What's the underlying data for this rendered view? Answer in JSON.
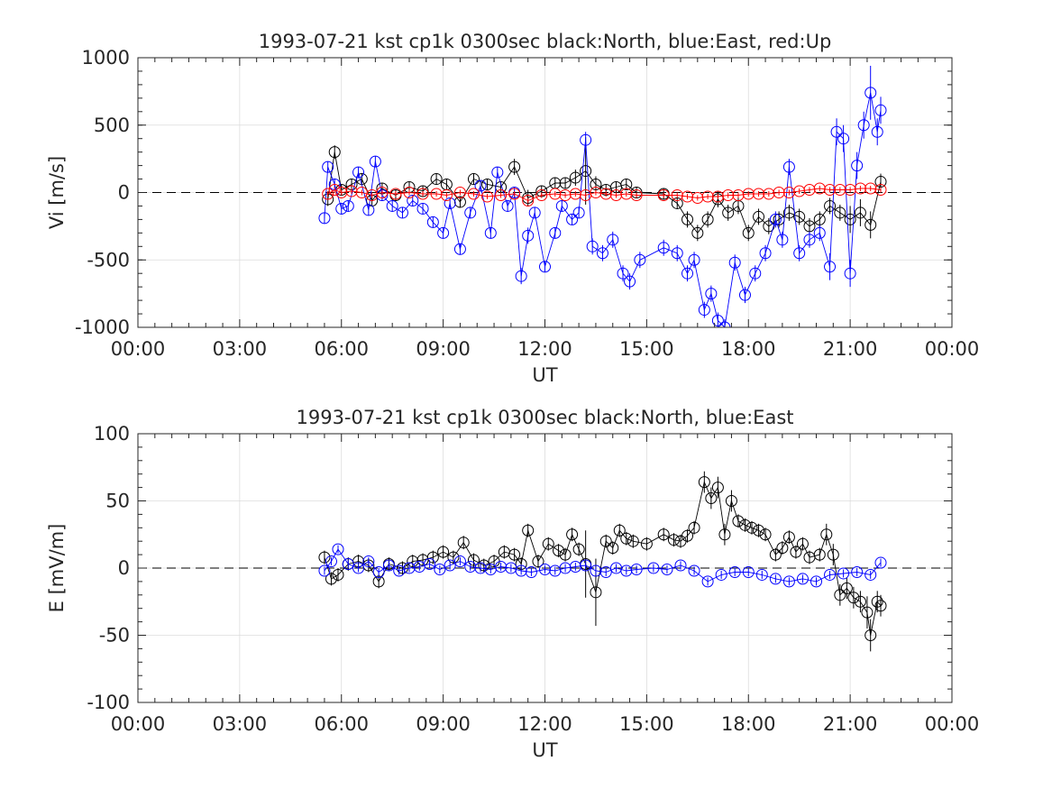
{
  "chart_data": [
    {
      "type": "scatter",
      "title": "1993-07-21 kst cp1k 0300sec black:North, blue:East, red:Up",
      "xlabel": "UT",
      "ylabel": "Vi [m/s]",
      "xlim": [
        0,
        24
      ],
      "ylim": [
        -1000,
        1000
      ],
      "xticks": [
        0,
        3,
        6,
        9,
        12,
        15,
        18,
        21,
        24
      ],
      "xticklabels": [
        "00:00",
        "03:00",
        "06:00",
        "09:00",
        "12:00",
        "15:00",
        "18:00",
        "21:00",
        "00:00"
      ],
      "yticks": [
        -1000,
        -500,
        0,
        500,
        1000
      ],
      "yticklabels": [
        "-1000",
        "-500",
        "0",
        "500",
        "1000"
      ],
      "grid": true,
      "zero_line": "dashed",
      "series": [
        {
          "name": "North",
          "color": "#000000",
          "x": [
            5.6,
            5.8,
            6.0,
            6.3,
            6.6,
            6.9,
            7.2,
            7.6,
            8.0,
            8.4,
            8.8,
            9.1,
            9.5,
            9.9,
            10.3,
            10.7,
            11.1,
            11.5,
            11.9,
            12.3,
            12.6,
            12.9,
            13.2,
            13.5,
            13.8,
            14.1,
            14.4,
            14.7,
            15.5,
            15.9,
            16.2,
            16.5,
            16.8,
            17.1,
            17.4,
            17.7,
            18.0,
            18.3,
            18.6,
            18.9,
            19.2,
            19.5,
            19.8,
            20.1,
            20.4,
            20.7,
            21.0,
            21.3,
            21.6,
            21.9
          ],
          "y": [
            -50,
            300,
            20,
            60,
            100,
            -60,
            30,
            -20,
            40,
            10,
            100,
            60,
            -70,
            100,
            60,
            40,
            190,
            -40,
            10,
            70,
            70,
            110,
            160,
            60,
            20,
            40,
            60,
            0,
            -10,
            -80,
            -200,
            -300,
            -200,
            -50,
            -150,
            -100,
            -300,
            -180,
            -250,
            -200,
            -150,
            -180,
            -250,
            -200,
            -100,
            -150,
            -200,
            -150,
            -240,
            80
          ],
          "err": [
            50,
            50,
            40,
            40,
            40,
            40,
            40,
            40,
            40,
            40,
            40,
            40,
            40,
            40,
            40,
            40,
            60,
            60,
            40,
            40,
            40,
            60,
            250,
            60,
            40,
            40,
            40,
            40,
            40,
            40,
            60,
            60,
            60,
            60,
            60,
            60,
            60,
            60,
            60,
            60,
            60,
            60,
            60,
            60,
            60,
            60,
            100,
            100,
            100,
            60
          ]
        },
        {
          "name": "East",
          "color": "#0000ff",
          "x": [
            5.5,
            5.6,
            5.8,
            6.0,
            6.2,
            6.5,
            6.8,
            7.0,
            7.2,
            7.5,
            7.8,
            8.1,
            8.4,
            8.7,
            9.0,
            9.2,
            9.5,
            9.8,
            10.1,
            10.4,
            10.6,
            10.9,
            11.1,
            11.3,
            11.5,
            11.7,
            12.0,
            12.3,
            12.5,
            12.8,
            13.0,
            13.2,
            13.4,
            13.7,
            14.0,
            14.3,
            14.5,
            14.8,
            15.5,
            15.9,
            16.2,
            16.4,
            16.7,
            16.9,
            17.1,
            17.3,
            17.6,
            17.9,
            18.2,
            18.5,
            18.8,
            19.0,
            19.2,
            19.5,
            19.8,
            20.1,
            20.4,
            20.6,
            20.8,
            21.0,
            21.2,
            21.4,
            21.6,
            21.8,
            21.9
          ],
          "y": [
            -190,
            190,
            60,
            -120,
            -100,
            150,
            -130,
            230,
            -20,
            -100,
            -150,
            -60,
            -120,
            -220,
            -300,
            -80,
            -420,
            -150,
            50,
            -300,
            150,
            -100,
            0,
            -620,
            -320,
            -150,
            -550,
            -300,
            -100,
            -200,
            -150,
            390,
            -400,
            -450,
            -350,
            -600,
            -660,
            -500,
            -410,
            -450,
            -600,
            -500,
            -870,
            -750,
            -950,
            -1000,
            -520,
            -760,
            -600,
            -450,
            -200,
            -350,
            190,
            -450,
            -350,
            -300,
            -550,
            450,
            400,
            -600,
            200,
            500,
            740,
            450,
            610
          ],
          "err": [
            40,
            40,
            40,
            40,
            40,
            40,
            40,
            40,
            40,
            40,
            40,
            40,
            40,
            40,
            40,
            40,
            40,
            40,
            40,
            40,
            40,
            40,
            40,
            60,
            60,
            40,
            40,
            40,
            40,
            40,
            40,
            60,
            60,
            60,
            60,
            60,
            60,
            60,
            60,
            60,
            60,
            60,
            60,
            60,
            60,
            60,
            60,
            60,
            60,
            60,
            60,
            60,
            60,
            60,
            60,
            60,
            100,
            100,
            100,
            100,
            100,
            100,
            200,
            100,
            100
          ]
        },
        {
          "name": "Up",
          "color": "#ff0000",
          "x": [
            5.6,
            5.8,
            6.0,
            6.3,
            6.6,
            6.9,
            7.2,
            7.6,
            8.0,
            8.4,
            8.8,
            9.1,
            9.5,
            9.9,
            10.3,
            10.7,
            11.1,
            11.5,
            11.9,
            12.3,
            12.6,
            12.9,
            13.2,
            13.5,
            13.8,
            14.1,
            14.4,
            14.7,
            15.5,
            15.9,
            16.2,
            16.5,
            16.8,
            17.1,
            17.4,
            17.7,
            18.0,
            18.3,
            18.6,
            18.9,
            19.2,
            19.5,
            19.8,
            20.1,
            20.4,
            20.7,
            21.0,
            21.3,
            21.6,
            21.9
          ],
          "y": [
            -10,
            20,
            0,
            10,
            0,
            -20,
            0,
            -10,
            0,
            -10,
            -10,
            -20,
            0,
            -10,
            -30,
            -20,
            -10,
            -60,
            -20,
            -10,
            -20,
            -10,
            -20,
            0,
            -10,
            -20,
            -10,
            -20,
            -20,
            -20,
            -30,
            -40,
            -30,
            -30,
            -20,
            -20,
            -10,
            -10,
            -10,
            0,
            0,
            10,
            20,
            30,
            20,
            20,
            20,
            30,
            30,
            20
          ],
          "err": [
            20,
            20,
            20,
            20,
            20,
            20,
            20,
            20,
            20,
            20,
            20,
            20,
            20,
            20,
            20,
            20,
            20,
            20,
            20,
            20,
            20,
            20,
            20,
            20,
            20,
            20,
            20,
            20,
            20,
            20,
            20,
            20,
            20,
            20,
            20,
            20,
            20,
            20,
            20,
            20,
            20,
            20,
            20,
            20,
            20,
            20,
            20,
            20,
            20,
            20
          ]
        }
      ]
    },
    {
      "type": "scatter",
      "title": "1993-07-21 kst cp1k 0300sec black:North, blue:East",
      "xlabel": "UT",
      "ylabel": "E [mV/m]",
      "xlim": [
        0,
        24
      ],
      "ylim": [
        -100,
        100
      ],
      "xticks": [
        0,
        3,
        6,
        9,
        12,
        15,
        18,
        21,
        24
      ],
      "xticklabels": [
        "00:00",
        "03:00",
        "06:00",
        "09:00",
        "12:00",
        "15:00",
        "18:00",
        "21:00",
        "00:00"
      ],
      "yticks": [
        -100,
        -50,
        0,
        50,
        100
      ],
      "yticklabels": [
        "-100",
        "-50",
        "0",
        "50",
        "100"
      ],
      "grid": true,
      "zero_line": "dashed",
      "series": [
        {
          "name": "North",
          "color": "#000000",
          "x": [
            5.5,
            5.7,
            5.9,
            6.2,
            6.5,
            6.8,
            7.1,
            7.4,
            7.8,
            8.1,
            8.4,
            8.7,
            9.0,
            9.3,
            9.6,
            9.9,
            10.2,
            10.5,
            10.8,
            11.1,
            11.3,
            11.5,
            11.8,
            12.1,
            12.4,
            12.6,
            12.8,
            13.0,
            13.2,
            13.5,
            13.8,
            14.0,
            14.2,
            14.4,
            14.6,
            15.0,
            15.5,
            15.8,
            16.0,
            16.2,
            16.4,
            16.7,
            16.9,
            17.1,
            17.3,
            17.5,
            17.7,
            17.9,
            18.1,
            18.3,
            18.5,
            18.8,
            19.0,
            19.2,
            19.4,
            19.6,
            19.8,
            20.1,
            20.3,
            20.5,
            20.7,
            20.9,
            21.1,
            21.3,
            21.5,
            21.6,
            21.8,
            21.9
          ],
          "y": [
            8,
            -8,
            -5,
            3,
            5,
            2,
            -10,
            3,
            0,
            5,
            6,
            8,
            12,
            8,
            19,
            6,
            2,
            5,
            12,
            10,
            3,
            28,
            5,
            18,
            13,
            10,
            25,
            14,
            3,
            -18,
            20,
            15,
            28,
            22,
            20,
            18,
            25,
            21,
            20,
            24,
            30,
            64,
            52,
            60,
            25,
            50,
            35,
            32,
            30,
            28,
            25,
            10,
            15,
            23,
            12,
            18,
            8,
            10,
            25,
            10,
            -20,
            -15,
            -22,
            -25,
            -33,
            -50,
            -25,
            -28
          ],
          "err": [
            5,
            5,
            5,
            5,
            5,
            5,
            5,
            5,
            5,
            5,
            5,
            5,
            5,
            5,
            5,
            5,
            5,
            5,
            5,
            5,
            5,
            5,
            5,
            5,
            5,
            5,
            5,
            5,
            25,
            25,
            5,
            5,
            5,
            5,
            5,
            5,
            5,
            5,
            5,
            5,
            5,
            8,
            8,
            8,
            8,
            8,
            5,
            5,
            5,
            5,
            5,
            5,
            5,
            5,
            5,
            5,
            5,
            5,
            8,
            8,
            8,
            8,
            8,
            8,
            12,
            12,
            8,
            8
          ]
        },
        {
          "name": "East",
          "color": "#0000ff",
          "x": [
            5.5,
            5.7,
            5.9,
            6.2,
            6.5,
            6.8,
            7.1,
            7.4,
            7.7,
            8.0,
            8.3,
            8.6,
            8.9,
            9.2,
            9.5,
            9.8,
            10.1,
            10.4,
            10.7,
            11.0,
            11.3,
            11.6,
            12.0,
            12.3,
            12.6,
            12.9,
            13.2,
            13.5,
            13.8,
            14.1,
            14.4,
            14.7,
            15.2,
            15.6,
            16.0,
            16.4,
            16.8,
            17.2,
            17.6,
            18.0,
            18.4,
            18.8,
            19.2,
            19.6,
            20.0,
            20.4,
            20.8,
            21.2,
            21.6,
            21.9
          ],
          "y": [
            -2,
            5,
            14,
            3,
            0,
            5,
            -3,
            2,
            -2,
            0,
            1,
            3,
            -1,
            2,
            5,
            1,
            0,
            -1,
            1,
            0,
            -2,
            -3,
            -1,
            -2,
            0,
            1,
            2,
            -2,
            -3,
            0,
            -2,
            -1,
            0,
            -1,
            2,
            -2,
            -10,
            -5,
            -3,
            -3,
            -5,
            -8,
            -10,
            -8,
            -10,
            -5,
            -4,
            -3,
            -5,
            4
          ],
          "err": [
            3,
            3,
            3,
            3,
            3,
            3,
            3,
            3,
            3,
            3,
            3,
            3,
            3,
            3,
            3,
            3,
            3,
            3,
            3,
            3,
            3,
            3,
            3,
            3,
            3,
            3,
            3,
            3,
            3,
            3,
            3,
            3,
            3,
            3,
            3,
            3,
            3,
            3,
            3,
            3,
            3,
            3,
            3,
            3,
            3,
            3,
            3,
            3,
            3,
            3
          ]
        }
      ]
    }
  ]
}
